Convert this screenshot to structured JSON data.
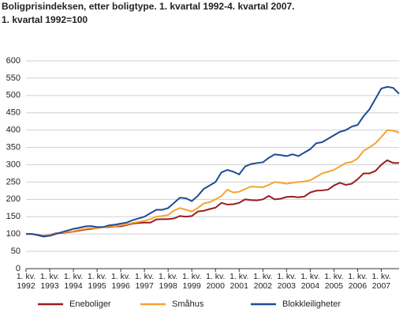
{
  "chart_data": {
    "type": "line",
    "title": "Boligprisindeksen, etter boligtype. 1. kvartal 1992-4. kvartal 2007.",
    "subtitle": "1. kvartal 1992=100",
    "categories": [
      "1. kv.\n1992",
      null,
      null,
      null,
      "1. kv.\n1993",
      null,
      null,
      null,
      "1. kv.\n1994",
      null,
      null,
      null,
      "1. kv.\n1995",
      null,
      null,
      null,
      "1. kv.\n1996",
      null,
      null,
      null,
      "1. kv.\n1997",
      null,
      null,
      null,
      "1. kv.\n1998",
      null,
      null,
      null,
      "1. kv.\n1999",
      null,
      null,
      null,
      "1. kv.\n2000",
      null,
      null,
      null,
      "1. kv.\n2001",
      null,
      null,
      null,
      "1. kv.\n2002",
      null,
      null,
      null,
      "1. kv.\n2003",
      null,
      null,
      null,
      "1. kv.\n2004",
      null,
      null,
      null,
      "1. kv.\n2005",
      null,
      null,
      null,
      "1. kv.\n2006",
      null,
      null,
      null,
      "1. kv.\n2007",
      null,
      null,
      null
    ],
    "series": [
      {
        "name": "Eneboliger",
        "color": "#9b1c20",
        "values": [
          100,
          100,
          97,
          94,
          97,
          102,
          103,
          105,
          107,
          110,
          113,
          115,
          117,
          120,
          120,
          122,
          122,
          126,
          130,
          132,
          133,
          133,
          142,
          143,
          143,
          145,
          152,
          150,
          152,
          165,
          167,
          172,
          176,
          190,
          185,
          186,
          190,
          200,
          198,
          197,
          200,
          210,
          200,
          202,
          207,
          208,
          206,
          208,
          220,
          225,
          226,
          228,
          240,
          248,
          242,
          245,
          258,
          275,
          275,
          282,
          300,
          313,
          305,
          305
        ]
      },
      {
        "name": "Småhus",
        "color": "#f5a431",
        "values": [
          100,
          100,
          96,
          92,
          97,
          101,
          104,
          106,
          108,
          112,
          115,
          117,
          117,
          120,
          122,
          123,
          125,
          128,
          132,
          135,
          138,
          143,
          150,
          152,
          155,
          168,
          175,
          170,
          165,
          175,
          188,
          192,
          200,
          210,
          228,
          220,
          222,
          230,
          237,
          236,
          235,
          242,
          250,
          248,
          245,
          248,
          250,
          252,
          255,
          265,
          275,
          280,
          285,
          295,
          305,
          308,
          318,
          340,
          350,
          362,
          380,
          400,
          398,
          393
        ]
      },
      {
        "name": "Blokkleiligheter",
        "color": "#1f4a96",
        "values": [
          100,
          100,
          97,
          93,
          95,
          100,
          105,
          110,
          115,
          118,
          122,
          123,
          120,
          120,
          125,
          127,
          130,
          133,
          140,
          145,
          150,
          160,
          170,
          170,
          175,
          190,
          205,
          203,
          195,
          210,
          230,
          240,
          250,
          278,
          285,
          280,
          272,
          295,
          302,
          305,
          307,
          320,
          330,
          328,
          325,
          330,
          325,
          335,
          345,
          362,
          365,
          375,
          385,
          395,
          400,
          410,
          415,
          440,
          460,
          490,
          520,
          525,
          522,
          505
        ]
      }
    ],
    "ylim": [
      0,
      600
    ],
    "yticks": [
      0,
      50,
      100,
      150,
      200,
      250,
      300,
      350,
      400,
      450,
      500,
      550,
      600
    ],
    "grid": true,
    "legend": "bottom"
  }
}
